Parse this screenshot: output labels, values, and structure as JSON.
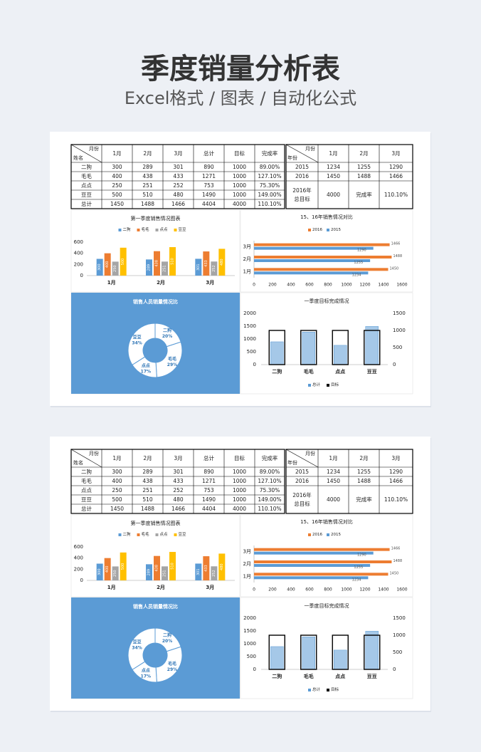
{
  "header": {
    "title": "季度销量分析表",
    "subtitle": "Excel格式 / 图表 / 自动化公式"
  },
  "sheet": {
    "sales_table": {
      "corner_top": "月份",
      "corner_bottom": "姓名",
      "columns": [
        "1月",
        "2月",
        "3月",
        "总计",
        "目标",
        "完成率"
      ],
      "rows": [
        [
          "二狗",
          300,
          289,
          301,
          890,
          1000,
          "89.00%"
        ],
        [
          "毛毛",
          400,
          438,
          433,
          1271,
          1000,
          "127.10%"
        ],
        [
          "点点",
          250,
          251,
          252,
          753,
          1000,
          "75.30%"
        ],
        [
          "豆豆",
          500,
          510,
          480,
          1490,
          1000,
          "149.00%"
        ],
        [
          "总计",
          1450,
          1488,
          1466,
          4404,
          4000,
          "110.10%"
        ]
      ]
    },
    "year_table": {
      "corner_top": "月份",
      "corner_bottom": "年份",
      "columns": [
        "1月",
        "2月",
        "3月"
      ],
      "rows": [
        [
          "2015",
          1234,
          1255,
          1290
        ],
        [
          "2016",
          1450,
          1488,
          1466
        ]
      ],
      "target_label": [
        "2016年",
        "总目标"
      ],
      "target": 4000,
      "rate_label": "完成率",
      "rate": "110.10%"
    }
  },
  "chart_data": [
    {
      "type": "bar",
      "title": "第一季度销售情况图表",
      "categories": [
        "1月",
        "2月",
        "3月"
      ],
      "series": [
        {
          "name": "二狗",
          "color": "#5b9bd5",
          "values": [
            300,
            289,
            301
          ]
        },
        {
          "name": "毛毛",
          "color": "#ed7d31",
          "values": [
            400,
            438,
            433
          ]
        },
        {
          "name": "点点",
          "color": "#a5a5a5",
          "values": [
            250,
            251,
            252
          ]
        },
        {
          "name": "豆豆",
          "color": "#ffc000",
          "values": [
            500,
            510,
            480
          ]
        }
      ],
      "ylim": [
        0,
        600
      ],
      "yticks": [
        0,
        200,
        400,
        600
      ],
      "legend": "top"
    },
    {
      "type": "barh",
      "title": "15、16年销售情况对比",
      "categories": [
        "1月",
        "2月",
        "3月"
      ],
      "series": [
        {
          "name": "2016",
          "color": "#ed7d31",
          "values": [
            1450,
            1488,
            1466
          ]
        },
        {
          "name": "2015",
          "color": "#5b9bd5",
          "values": [
            1234,
            1255,
            1290
          ]
        }
      ],
      "xlim": [
        0,
        1600
      ],
      "xticks": [
        0,
        200,
        400,
        600,
        800,
        1000,
        1200,
        1400,
        1600
      ],
      "legend": "top"
    },
    {
      "type": "donut",
      "title": "销售人员销量情况比",
      "categories": [
        "二狗",
        "毛毛",
        "点点",
        "豆豆"
      ],
      "values": [
        20,
        29,
        17,
        34
      ],
      "value_labels": [
        "20%",
        "29%",
        "17%",
        "34%"
      ],
      "background": "#5b9bd5",
      "color": "#ffffff"
    },
    {
      "type": "combo",
      "title": "一季度目标完成情况",
      "categories": [
        "二狗",
        "毛毛",
        "点点",
        "豆豆"
      ],
      "series": [
        {
          "name": "总计",
          "color": "#5b9bd5",
          "values": [
            890,
            1271,
            753,
            1490
          ]
        },
        {
          "name": "目标",
          "color": "#000000",
          "values": [
            1000,
            1000,
            1000,
            1000
          ],
          "axis": "y2"
        }
      ],
      "ylim": [
        0,
        2000
      ],
      "yticks": [
        0,
        500,
        1000,
        1500,
        2000
      ],
      "y2lim": [
        0,
        1500
      ],
      "y2ticks": [
        0,
        500,
        1000,
        1500
      ],
      "legend": "bottom"
    }
  ]
}
